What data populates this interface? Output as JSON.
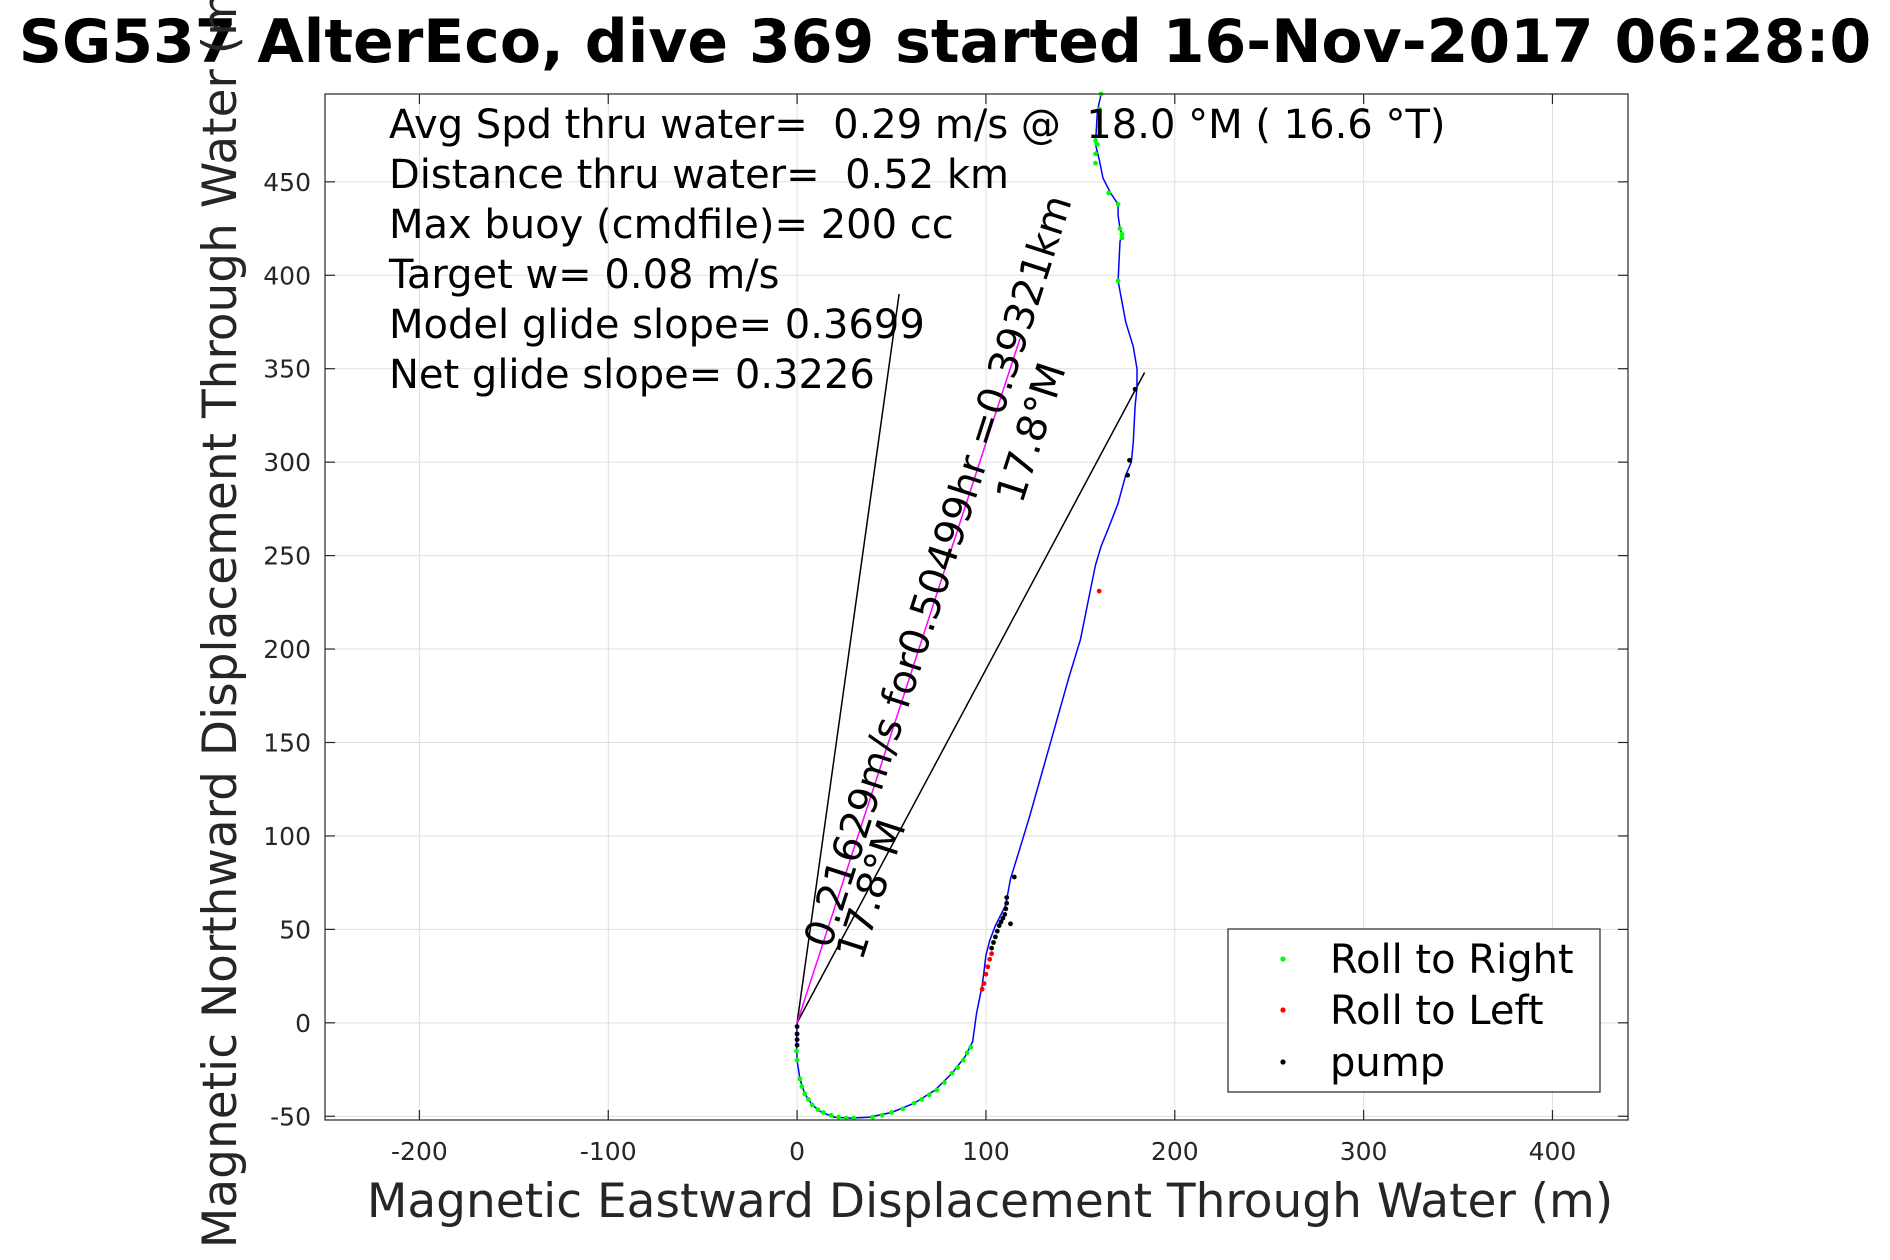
{
  "title": "SG537 AlterEco, dive 369 started 16-Nov-2017 06:28:0",
  "stats": [
    "Avg Spd thru water=  0.29 m/s @  18.0 °M ( 16.6 °T)",
    "Distance thru water=  0.52 km",
    "Max buoy (cmdfile)= 200 cc",
    "Target w= 0.08 m/s",
    "Model glide slope= 0.3699",
    "Net glide slope= 0.3226"
  ],
  "annotations": {
    "current_speed": "0.21629m/s for0.50499hr =0.39321km",
    "heading_low": "17.8°M",
    "heading_high": "17.8°M"
  },
  "chart_data": {
    "type": "line",
    "title": "SG537 AlterEco, dive 369 started 16-Nov-2017 06:28:0",
    "xlabel": "Magnetic Eastward Displacement Through Water (m)",
    "ylabel": "Magnetic Northward Displacement Through Water (m)",
    "xlim": [
      -250,
      440
    ],
    "ylim": [
      -52,
      497
    ],
    "xticks": [
      -200,
      -100,
      0,
      100,
      200,
      300,
      400
    ],
    "yticks": [
      -50,
      0,
      50,
      100,
      150,
      200,
      250,
      300,
      350,
      400,
      450
    ],
    "grid": true,
    "legend_position": "bottom-right",
    "colors": {
      "track": "#0000ff",
      "roll_right": "#00ff00",
      "roll_left": "#ff0000",
      "pump": "#000000",
      "current_line": "#ff00ff",
      "guide_lines": "#000000"
    },
    "track": {
      "x": [
        0,
        -0.3,
        0,
        1.5,
        4,
        8,
        13,
        20,
        28,
        38,
        50,
        62,
        73,
        82,
        89,
        93,
        95,
        97,
        98,
        99,
        100,
        102,
        105,
        108,
        110,
        111,
        113,
        117,
        123,
        130,
        137,
        144,
        150,
        155,
        158,
        161,
        165,
        170,
        174,
        177,
        178,
        179,
        180,
        180,
        178,
        174,
        170,
        171,
        172,
        171,
        170,
        170,
        166,
        162,
        160,
        158,
        159,
        161
      ],
      "y": [
        0,
        -10,
        -20,
        -30,
        -38,
        -44,
        -48,
        -50.5,
        -51,
        -50.5,
        -48,
        -43,
        -36,
        -27,
        -18,
        -10,
        5,
        15,
        20,
        28,
        36,
        44,
        52,
        58,
        62,
        66,
        77,
        90,
        110,
        135,
        160,
        185,
        205,
        230,
        245,
        255,
        265,
        278,
        293,
        300,
        310,
        330,
        340,
        350,
        362,
        375,
        397,
        418,
        422,
        425,
        432,
        438,
        444,
        452,
        462,
        470,
        488,
        497
      ]
    },
    "roll_right_points": {
      "x": [
        -0.3,
        0,
        1.5,
        2.5,
        4,
        6,
        8,
        11,
        14,
        18,
        22,
        26,
        30,
        40,
        45,
        50,
        56,
        62,
        66,
        70,
        74,
        78,
        82,
        85,
        88,
        90,
        92,
        159,
        158,
        160,
        161,
        165,
        170,
        171,
        172,
        172,
        170,
        158,
        158,
        160
      ],
      "y": [
        -15,
        -20,
        -30,
        -34,
        -38,
        -41,
        -44,
        -46.5,
        -48,
        -49.5,
        -50.5,
        -51,
        -51,
        -50.5,
        -49.5,
        -48,
        -46,
        -43,
        -41,
        -38.5,
        -36,
        -32,
        -27,
        -24,
        -20,
        -16,
        -13,
        470,
        472,
        489,
        497,
        444,
        438,
        425,
        422,
        420,
        397,
        465,
        460,
        480
      ]
    },
    "roll_left_points": {
      "x": [
        98,
        99,
        100,
        101,
        102,
        103,
        160
      ],
      "y": [
        18,
        21,
        26,
        30,
        34,
        37,
        231
      ]
    },
    "pump_points": {
      "x": [
        0,
        0,
        0,
        0,
        103,
        104,
        105,
        106,
        107,
        108,
        109,
        110,
        110.5,
        111,
        111,
        115,
        179,
        176,
        175,
        113
      ],
      "y": [
        -2,
        -6,
        -9,
        -12,
        40,
        43,
        46,
        49,
        52,
        54,
        56,
        58,
        61,
        64,
        67,
        78,
        339,
        301,
        293,
        53
      ]
    },
    "current_line": {
      "x": [
        0,
        118
      ],
      "y": [
        0,
        366
      ]
    },
    "guide_lines": [
      {
        "x": [
          0,
          54
        ],
        "y": [
          0,
          390
        ]
      },
      {
        "x": [
          0,
          184
        ],
        "y": [
          0,
          348
        ]
      }
    ],
    "legend": [
      "Roll to Right",
      "Roll to Left",
      "pump"
    ]
  }
}
